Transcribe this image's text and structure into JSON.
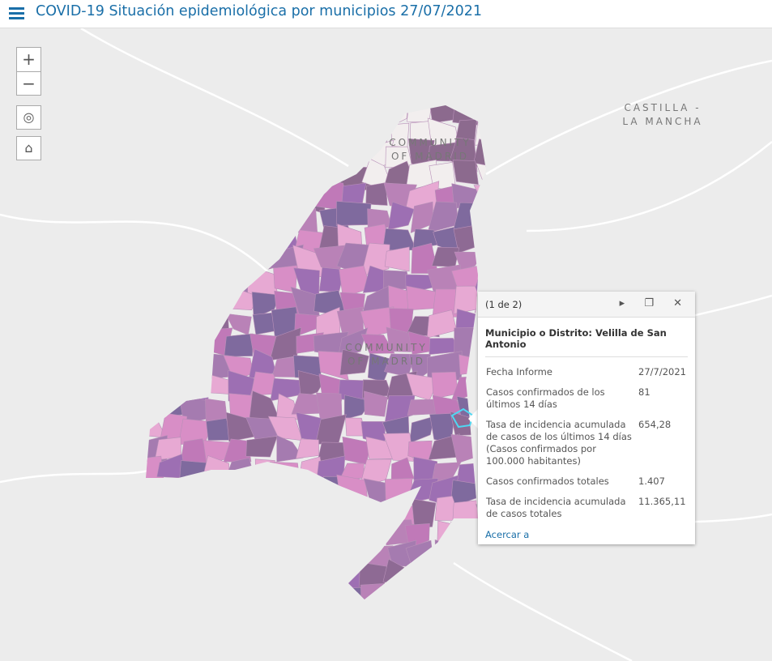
{
  "header": {
    "title": "COVID-19 Situación epidemiológica por municipios 27/07/2021"
  },
  "controls": {
    "zoom_in": "+",
    "zoom_out": "−"
  },
  "map": {
    "labels": [
      {
        "lines": [
          "CASTILLA -",
          "LA MANCHA"
        ]
      },
      {
        "lines": [
          "COMMUNITY",
          "OF MADRID"
        ]
      },
      {
        "lines": [
          "COMMUNITY",
          "OF MADRID"
        ]
      }
    ]
  },
  "popup": {
    "pager": "(1 de 2)",
    "title": "Municipio o Distrito: Velilla de San Antonio",
    "rows": [
      [
        "Fecha Informe",
        "27/7/2021"
      ],
      [
        "Casos confirmados de los últimos 14 días",
        "81"
      ],
      [
        "Tasa de incidencia acumulada de casos de los últimos 14 días (Casos confirmados por 100.000 habitantes)",
        "654,28"
      ],
      [
        "Casos confirmados totales",
        "1.407"
      ],
      [
        "Tasa de incidencia acumulada de casos totales",
        "11.365,11"
      ]
    ],
    "link": "Acercar a"
  }
}
